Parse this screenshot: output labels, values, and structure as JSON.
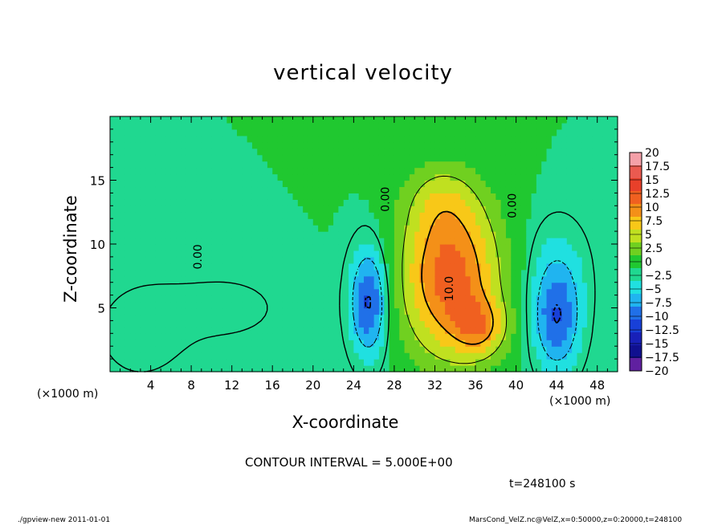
{
  "chart_data": {
    "type": "heatmap",
    "title": "vertical velocity",
    "xlabel": "X-coordinate",
    "ylabel": "Z-coordinate",
    "x_unit": "(×1000 m)",
    "xlim": [
      0,
      50
    ],
    "ylim": [
      0,
      20
    ],
    "x_ticks": [
      4,
      8,
      12,
      16,
      20,
      24,
      28,
      32,
      36,
      40,
      44,
      48
    ],
    "y_ticks": [
      5,
      10,
      15
    ],
    "colorbar": {
      "levels": [
        20,
        17.5,
        15,
        12.5,
        10,
        7.5,
        5,
        2.5,
        0,
        -2.5,
        -5,
        -7.5,
        -10,
        -12.5,
        -15,
        -17.5,
        -20
      ],
      "labels": [
        "20",
        "17.5",
        "15",
        "12.5",
        "10",
        "7.5",
        "5",
        "2.5",
        "0",
        "−2.5",
        "−5",
        "−7.5",
        "−10",
        "−12.5",
        "−15",
        "−17.5",
        "−20"
      ],
      "colors": [
        "#f4a0a8",
        "#ea5a50",
        "#e8402a",
        "#f06020",
        "#f49018",
        "#f8c818",
        "#c0e020",
        "#70d020",
        "#20c830",
        "#20d890",
        "#20e0e0",
        "#20b4f0",
        "#2070e8",
        "#1840d8",
        "#1820b8",
        "#101090",
        "#6020a0"
      ]
    },
    "features": [
      {
        "x": 33.5,
        "z": 7.5,
        "sx": 3.4,
        "sz": 4.5,
        "value": 14
      },
      {
        "x": 36.5,
        "z": 3.5,
        "sx": 1.8,
        "sz": 1.6,
        "value": 7
      },
      {
        "x": 32.5,
        "z": 13.5,
        "sx": 2.5,
        "sz": 2.0,
        "value": 3
      },
      {
        "x": 25.5,
        "z": 5.5,
        "sx": 1.3,
        "sz": 3.0,
        "value": -11
      },
      {
        "x": 44.0,
        "z": 4.0,
        "sx": 1.6,
        "sz": 2.8,
        "value": -9
      },
      {
        "x": 44.0,
        "z": 8.0,
        "sx": 2.2,
        "sz": 3.0,
        "value": -3
      },
      {
        "x": 11.0,
        "z": 5.0,
        "sx": 5.0,
        "sz": 2.2,
        "value": -1.5
      },
      {
        "x": 3.0,
        "z": 3.0,
        "sx": 3.0,
        "sz": 2.5,
        "value": -2
      }
    ],
    "contour_labels": [
      {
        "x": 33.8,
        "z": 6.5,
        "text": "10.0"
      },
      {
        "x": 9.0,
        "z": 9.0,
        "text": "0.00"
      },
      {
        "x": 27.5,
        "z": 13.5,
        "text": "0.00"
      },
      {
        "x": 40.0,
        "z": 13.0,
        "text": "0.00"
      }
    ]
  },
  "labels": {
    "x_unit_left": "(×1000 m)",
    "x_unit_right": "(×1000 m)",
    "contour_interval": "CONTOUR INTERVAL = 5.000E+00",
    "time": "t=248100 s",
    "footer_left": "./gpview-new   2011-01-01",
    "footer_right": "MarsCond_VelZ.nc@VelZ,x=0:50000,z=0:20000,t=248100"
  }
}
